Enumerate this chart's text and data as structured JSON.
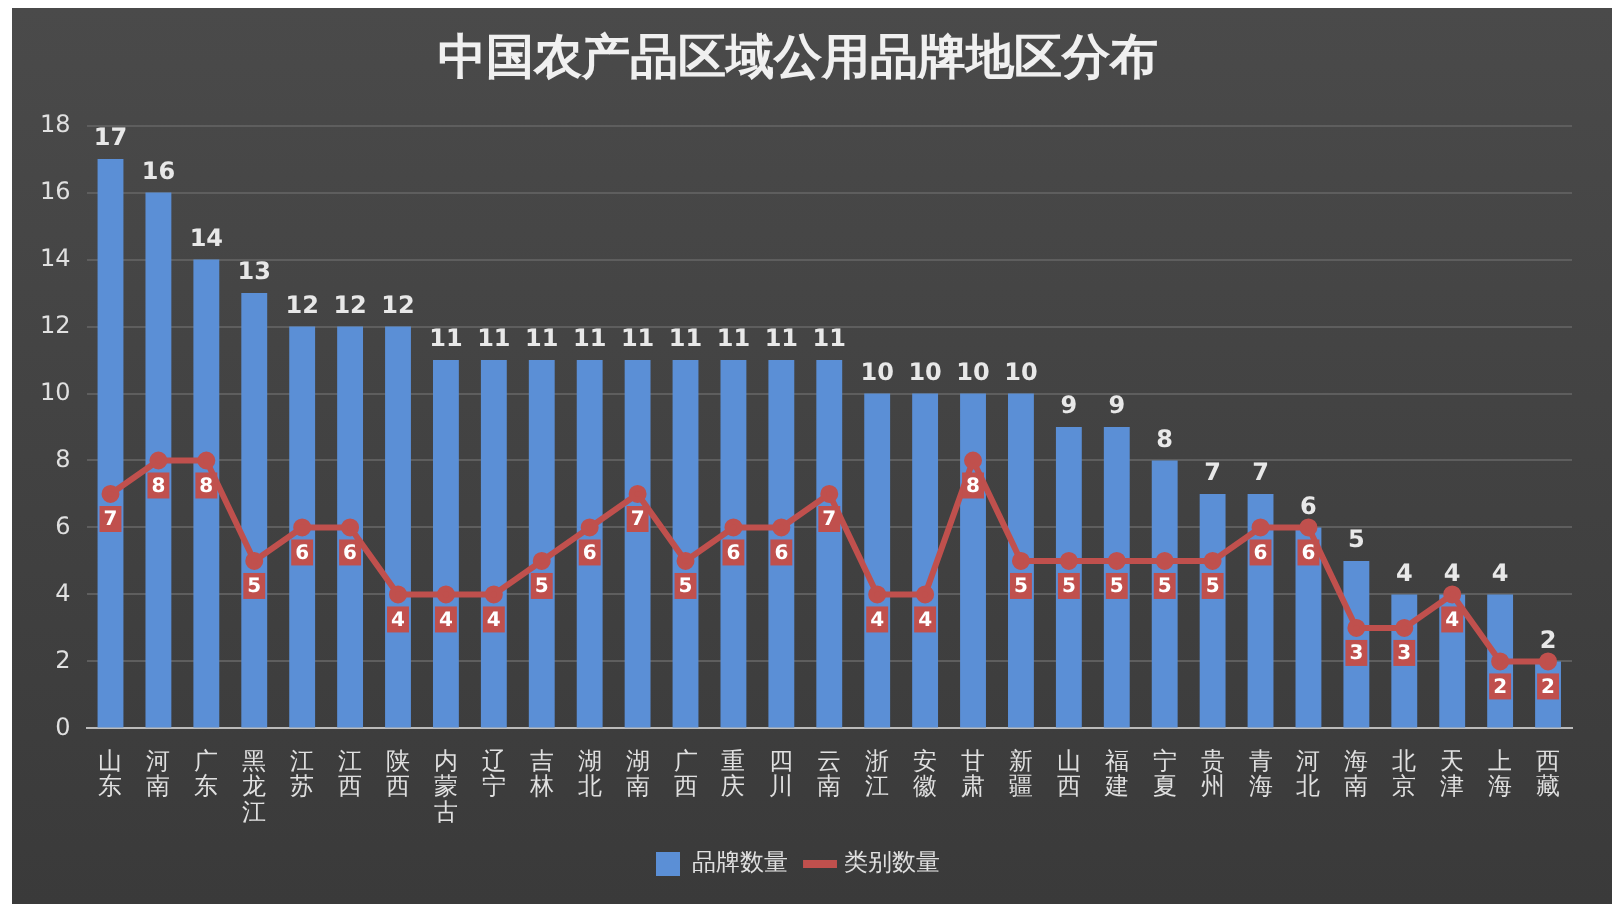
{
  "chart_data": {
    "type": "bar",
    "title": "中国农产品区域公用品牌地区分布",
    "categories": [
      "山东",
      "河南",
      "广东",
      "黑龙江",
      "江苏",
      "江西",
      "陕西",
      "内蒙古",
      "辽宁",
      "吉林",
      "湖北",
      "湖南",
      "广西",
      "重庆",
      "四川",
      "云南",
      "浙江",
      "安徽",
      "甘肃",
      "新疆",
      "山西",
      "福建",
      "宁夏",
      "贵州",
      "青海",
      "河北",
      "海南",
      "北京",
      "天津",
      "上海",
      "西藏"
    ],
    "series": [
      {
        "name": "品牌数量",
        "color": "#5b8fd6",
        "values": [
          17,
          16,
          14,
          13,
          12,
          12,
          12,
          11,
          11,
          11,
          11,
          11,
          11,
          11,
          11,
          11,
          10,
          10,
          10,
          10,
          9,
          9,
          8,
          7,
          7,
          6,
          5,
          4,
          4,
          4,
          2
        ]
      },
      {
        "name": "类别数量",
        "type": "line",
        "color": "#c0504d",
        "values": [
          7,
          8,
          8,
          5,
          6,
          6,
          4,
          4,
          4,
          5,
          6,
          7,
          5,
          6,
          6,
          7,
          4,
          4,
          8,
          5,
          5,
          5,
          5,
          5,
          6,
          6,
          3,
          3,
          4,
          2,
          2
        ]
      }
    ],
    "ylim": [
      0,
      18
    ],
    "yticks": [
      0,
      2,
      4,
      6,
      8,
      10,
      12,
      14,
      16,
      18
    ],
    "grid": "y",
    "legend": "bottom",
    "data_labels": true,
    "marker": "circle"
  }
}
